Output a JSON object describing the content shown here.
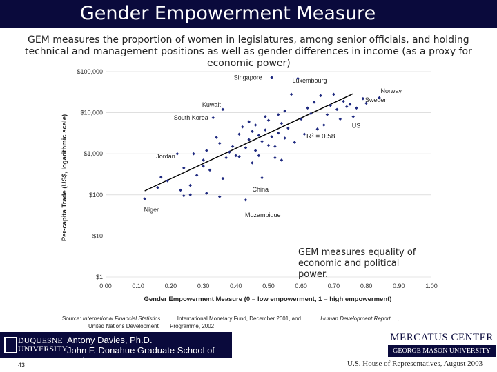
{
  "header": {
    "title": "Gender Empowerment Measure"
  },
  "subtitle": {
    "line1": "GEM measures the     proportion of women in legislatures, among senior officials, and holding",
    "line2": "technical and management positions as well as gender differences in income (as a proxy for",
    "line3": "economic power)"
  },
  "colors": {
    "title_bg": "#0a0a3c",
    "point": "#1f2a80",
    "trend": "#000000"
  },
  "chart_data": {
    "type": "scatter",
    "xlabel": "Gender Empowerment Measure (0 = low empowerment, 1 = high empowerment)",
    "ylabel": "Per-capita Trade (US$, logarithmic scale)",
    "y_scale": "log",
    "xlim": [
      0,
      1
    ],
    "ylim": [
      1,
      100000
    ],
    "x_ticks": [
      "0.00",
      "0.10",
      "0.20",
      "0.30",
      "0.40",
      "0.50",
      "0.60",
      "0.70",
      "0.80",
      "0.90",
      "1.00"
    ],
    "y_ticks": [
      "$1",
      "$10",
      "$100",
      "$1,000",
      "$10,000",
      "$100,000"
    ],
    "r_squared": "R² = 0.58",
    "trendline": {
      "x": [
        0.12,
        0.76
      ],
      "y": [
        125,
        29000
      ]
    },
    "annotation": "GEM measures equality of economic and political power.",
    "labeled_points": [
      {
        "label": "Singapore",
        "x": 0.51,
        "y": 72000
      },
      {
        "label": "Luxembourg",
        "x": 0.59,
        "y": 68000
      },
      {
        "label": "Norway",
        "x": 0.84,
        "y": 23000
      },
      {
        "label": "Sweden",
        "x": 0.79,
        "y": 22000
      },
      {
        "label": "Kuwait",
        "x": 0.36,
        "y": 12000
      },
      {
        "label": "South Korea",
        "x": 0.33,
        "y": 7500
      },
      {
        "label": "US",
        "x": 0.76,
        "y": 8000
      },
      {
        "label": "Jordan",
        "x": 0.22,
        "y": 1000
      },
      {
        "label": "China",
        "x": 0.48,
        "y": 260
      },
      {
        "label": "Niger",
        "x": 0.12,
        "y": 80
      },
      {
        "label": "Mozambique",
        "x": 0.43,
        "y": 75
      }
    ],
    "points": [
      [
        0.12,
        80
      ],
      [
        0.16,
        150
      ],
      [
        0.17,
        270
      ],
      [
        0.19,
        220
      ],
      [
        0.22,
        1000
      ],
      [
        0.23,
        130
      ],
      [
        0.24,
        450
      ],
      [
        0.24,
        95
      ],
      [
        0.26,
        100
      ],
      [
        0.26,
        170
      ],
      [
        0.27,
        1000
      ],
      [
        0.28,
        300
      ],
      [
        0.3,
        500
      ],
      [
        0.3,
        700
      ],
      [
        0.31,
        1200
      ],
      [
        0.31,
        110
      ],
      [
        0.32,
        400
      ],
      [
        0.33,
        7500
      ],
      [
        0.34,
        2500
      ],
      [
        0.35,
        1800
      ],
      [
        0.35,
        90
      ],
      [
        0.36,
        250
      ],
      [
        0.36,
        12000
      ],
      [
        0.37,
        800
      ],
      [
        0.38,
        1100
      ],
      [
        0.39,
        1500
      ],
      [
        0.4,
        900
      ],
      [
        0.41,
        3000
      ],
      [
        0.41,
        850
      ],
      [
        0.42,
        4500
      ],
      [
        0.43,
        1400
      ],
      [
        0.43,
        75
      ],
      [
        0.44,
        2200
      ],
      [
        0.44,
        6000
      ],
      [
        0.45,
        600
      ],
      [
        0.45,
        3500
      ],
      [
        0.46,
        1200
      ],
      [
        0.46,
        5000
      ],
      [
        0.47,
        2800
      ],
      [
        0.47,
        900
      ],
      [
        0.48,
        260
      ],
      [
        0.48,
        2000
      ],
      [
        0.49,
        3800
      ],
      [
        0.49,
        8000
      ],
      [
        0.5,
        1600
      ],
      [
        0.5,
        6500
      ],
      [
        0.51,
        72000
      ],
      [
        0.51,
        2600
      ],
      [
        0.52,
        800
      ],
      [
        0.52,
        1500
      ],
      [
        0.53,
        3200
      ],
      [
        0.53,
        9000
      ],
      [
        0.54,
        700
      ],
      [
        0.54,
        5500
      ],
      [
        0.55,
        2400
      ],
      [
        0.55,
        11000
      ],
      [
        0.56,
        4200
      ],
      [
        0.57,
        28000
      ],
      [
        0.58,
        1900
      ],
      [
        0.59,
        68000
      ],
      [
        0.6,
        7000
      ],
      [
        0.61,
        3000
      ],
      [
        0.62,
        13000
      ],
      [
        0.63,
        9500
      ],
      [
        0.64,
        18000
      ],
      [
        0.65,
        4000
      ],
      [
        0.66,
        26000
      ],
      [
        0.67,
        5000
      ],
      [
        0.68,
        9000
      ],
      [
        0.69,
        15000
      ],
      [
        0.7,
        28000
      ],
      [
        0.71,
        12000
      ],
      [
        0.72,
        7000
      ],
      [
        0.73,
        19000
      ],
      [
        0.74,
        14000
      ],
      [
        0.75,
        16000
      ],
      [
        0.76,
        8000
      ],
      [
        0.77,
        13000
      ],
      [
        0.79,
        22000
      ],
      [
        0.8,
        17000
      ],
      [
        0.84,
        23000
      ]
    ]
  },
  "source": {
    "prefix": "Source: ",
    "ifs": "International Financial Statistics",
    "mid": ", International Monetary Fund, December 2001, and",
    "hdr": "Human Development Report",
    "tail": ",",
    "line2a": "United Nations Development",
    "line2b": "Programme",
    "line2c": ", 2002"
  },
  "footer": {
    "duquesne_line1": "DUQUESNE",
    "duquesne_line2": "UNIVERSITY",
    "person_line1": "Antony Davies, Ph.D.",
    "person_line2": "John F. Donahue Graduate School of Business",
    "mercatus_top": "MERCATUS CENTER",
    "mercatus_bottom": "GEORGE MASON UNIVERSITY",
    "page_number": "43",
    "reference": "U.S. House of Representatives, August 2003"
  }
}
